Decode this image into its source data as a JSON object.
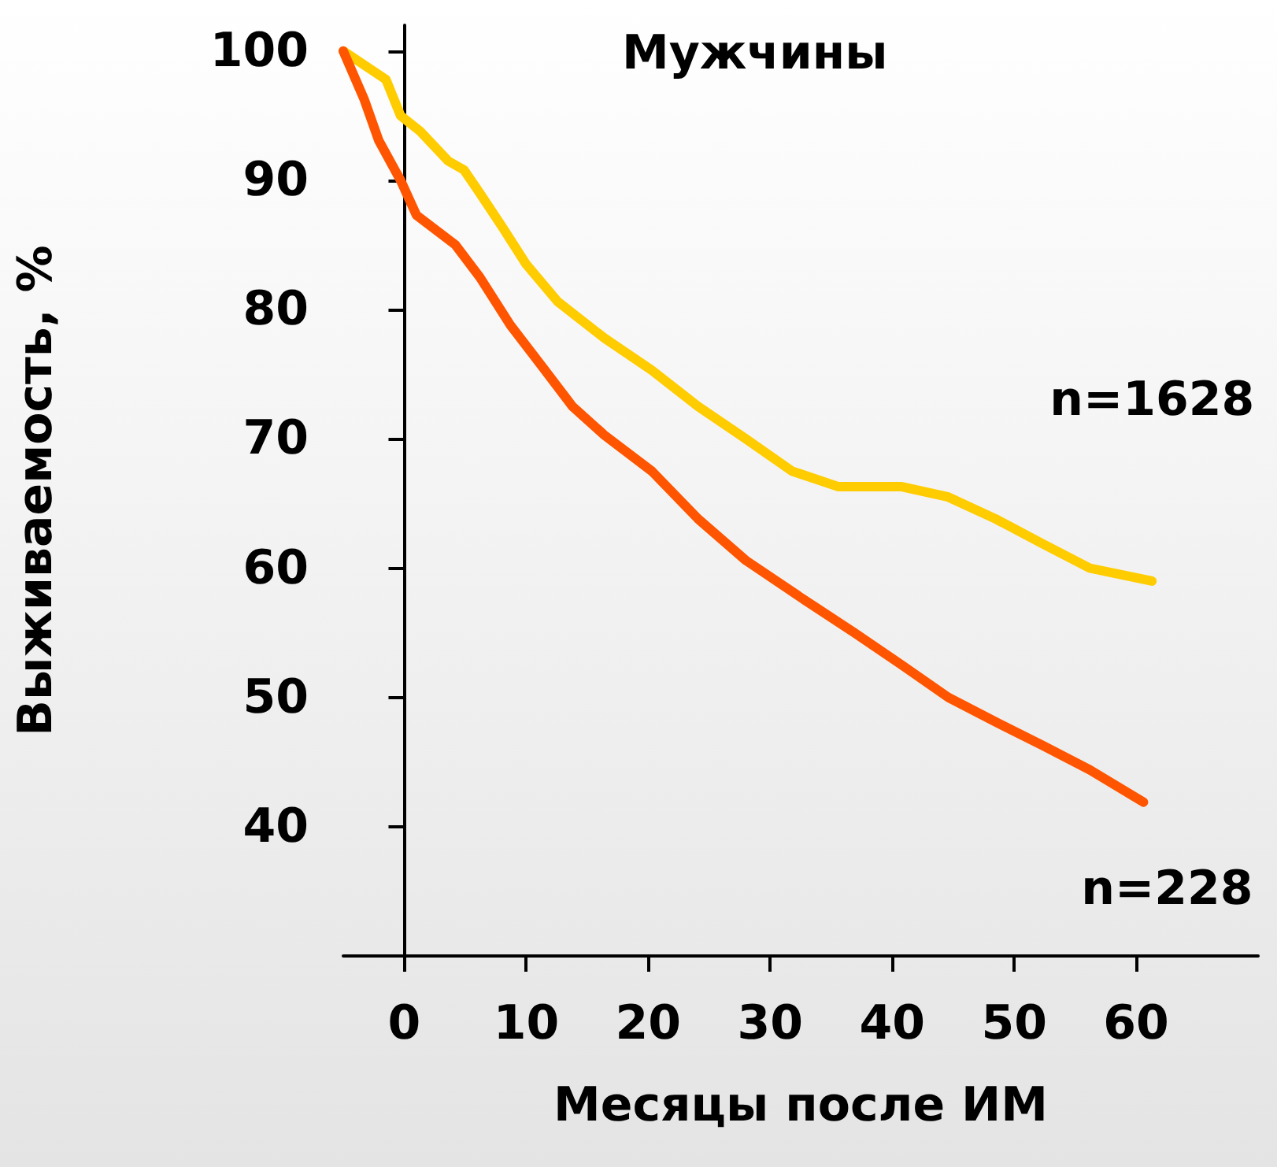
{
  "chart_data": {
    "type": "line",
    "title": "Мужчины",
    "xlabel": "Месяцы после ИМ",
    "ylabel": "Выживаемость, %",
    "xlim": [
      -5,
      70
    ],
    "xticks": [
      0,
      10,
      20,
      30,
      40,
      50,
      60
    ],
    "ylim": [
      30,
      102
    ],
    "yticks": [
      40,
      50,
      60,
      70,
      80,
      90,
      100
    ],
    "grid": false,
    "marker": "none",
    "line_style": "solid",
    "series": [
      {
        "color": "#ffcc00",
        "x": [
          -5,
          -1.5,
          -0.3,
          1.3,
          3.6,
          4.9,
          6.2,
          8.1,
          10,
          12.6,
          16.4,
          20.3,
          24.1,
          28,
          31.8,
          35.6,
          40.8,
          44.6,
          48.5,
          52.3,
          56.2,
          61.3
        ],
        "values": [
          100,
          97.8,
          95,
          93.8,
          91.5,
          90.8,
          89,
          86.3,
          83.5,
          80.6,
          77.8,
          75.3,
          72.5,
          70,
          67.5,
          66.3,
          66.3,
          65.5,
          63.8,
          61.9,
          60,
          59
        ]
      },
      {
        "color": "#ff5500",
        "x": [
          -5,
          -3.3,
          -2.1,
          -0.3,
          1,
          4.2,
          6.2,
          8.7,
          11.3,
          13.8,
          16.4,
          20.3,
          24.1,
          28,
          32.4,
          36.9,
          40.8,
          44.6,
          48.5,
          52.3,
          56.2,
          60.6
        ],
        "values": [
          100,
          96.3,
          93.1,
          90,
          87.3,
          85,
          82.5,
          78.8,
          75.6,
          72.5,
          70.3,
          67.5,
          63.8,
          60.6,
          57.8,
          55,
          52.5,
          50,
          48.1,
          46.3,
          44.4,
          41.9
        ]
      }
    ],
    "annotations": [
      "n=1628",
      "n=228"
    ]
  }
}
